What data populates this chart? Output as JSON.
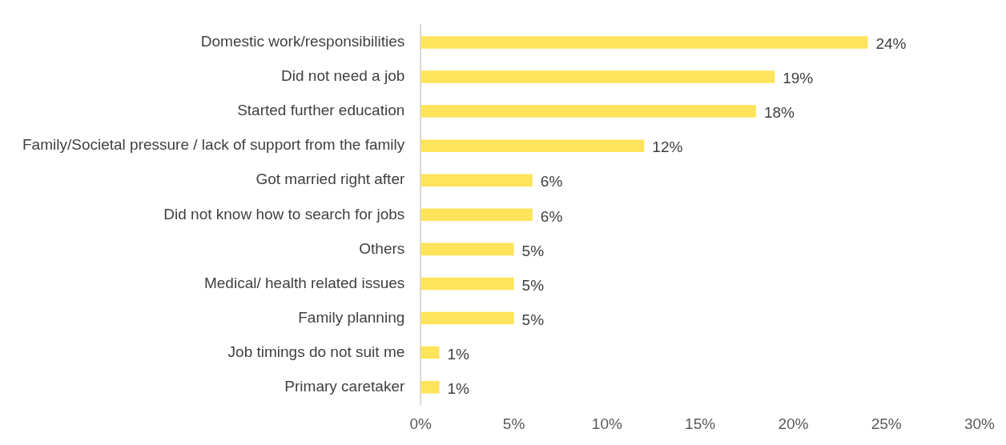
{
  "chart_data": {
    "type": "bar",
    "orientation": "horizontal",
    "categories": [
      "Domestic work/responsibilities",
      "Did not need a job",
      "Started further education",
      "Family/Societal pressure / lack of support from the family",
      "Got married right after",
      "Did not know how to search for jobs",
      "Others",
      "Medical/ health related issues",
      "Family planning",
      "Job timings do not suit me",
      "Primary caretaker"
    ],
    "values": [
      24,
      19,
      18,
      12,
      6,
      6,
      5,
      5,
      5,
      1,
      1
    ],
    "color": "#ffe35a",
    "value_labels": [
      "24%",
      "19%",
      "18%",
      "12%",
      "6%",
      "6%",
      "5%",
      "5%",
      "5%",
      "1%",
      "1%"
    ],
    "xlim": [
      0,
      30
    ],
    "xticks": [
      {
        "value": 0,
        "label": "0%"
      },
      {
        "value": 5,
        "label": "5%"
      },
      {
        "value": 10,
        "label": "10%"
      },
      {
        "value": 15,
        "label": "15%"
      },
      {
        "value": 20,
        "label": "20%"
      },
      {
        "value": 25,
        "label": "25%"
      },
      {
        "value": 30,
        "label": "30%"
      }
    ],
    "grid": false,
    "legend": false
  }
}
